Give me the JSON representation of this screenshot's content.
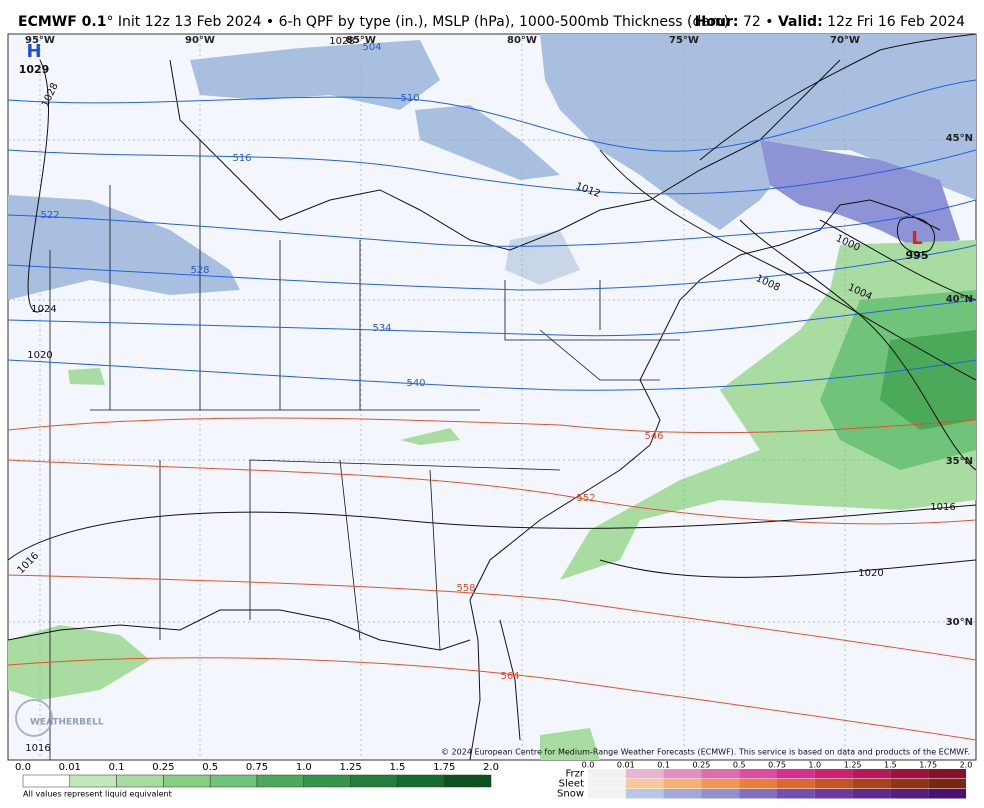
{
  "header": {
    "title_model": "ECMWF 0.1",
    "title_rest": "° Init 12z 13 Feb 2024 • 6-h QPF by type (in.), MSLP (hPa), 1000-500mb Thickness (dam)",
    "hour_label": "Hour:",
    "hour": "72",
    "separator": "•",
    "valid_label": "Valid:",
    "valid": "12z Fri 16 Feb 2024"
  },
  "map": {
    "longitudes": [
      "95°W",
      "90°W",
      "85°W",
      "80°W",
      "75°W",
      "70°W"
    ],
    "latitudes": [
      "45°N",
      "40°N",
      "35°N",
      "30°N"
    ],
    "high": {
      "symbol": "H",
      "pressure": "1029"
    },
    "low": {
      "symbol": "L",
      "pressure": "995"
    },
    "isobar_labels": [
      "1028",
      "1028",
      "1024",
      "1020",
      "1016",
      "1016",
      "1012",
      "1008",
      "1004",
      "1000",
      "1016",
      "1020"
    ],
    "thickness_labels": [
      "504",
      "510",
      "516",
      "522",
      "528",
      "534",
      "540",
      "546",
      "552",
      "558",
      "564"
    ],
    "copyright": "© 2024 European Centre for Medium-Range Weather Forecasts (ECMWF). This service is based on data and products of the ECMWF.",
    "watermark": "WEATHERBELL"
  },
  "legend": {
    "qpf_ticks": [
      "0.0",
      "0.01",
      "0.1",
      "0.25",
      "0.5",
      "0.75",
      "1.0",
      "1.25",
      "1.5",
      "1.75",
      "2.0"
    ],
    "note": "All values represent liquid equivalent",
    "ptype_labels": [
      "Frzr",
      "Sleet",
      "Snow"
    ],
    "ptype_ticks": [
      "0.0",
      "0.01",
      "0.1",
      "0.25",
      "0.5",
      "0.75",
      "1.0",
      "1.25",
      "1.5",
      "1.75",
      "2.0"
    ]
  }
}
